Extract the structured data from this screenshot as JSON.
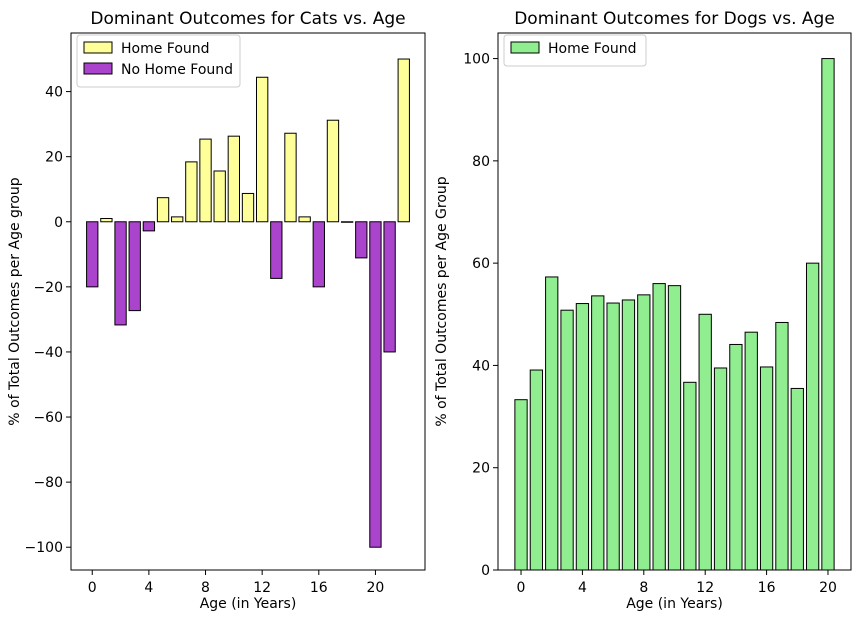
{
  "chart_data": [
    {
      "type": "bar",
      "title": "Dominant Outcomes for Cats vs. Age",
      "xlabel": "Age (in Years)",
      "ylabel": "% of Total Outcomes per Age group",
      "xlim": [
        -1.5,
        23.5
      ],
      "ylim": [
        -107,
        58
      ],
      "xticks": [
        0,
        4,
        8,
        12,
        16,
        20
      ],
      "yticks": [
        -100,
        -80,
        -60,
        -40,
        -20,
        0,
        20,
        40
      ],
      "legend_position": "top-left",
      "series": [
        {
          "name": "Home Found",
          "color": "#ffff99",
          "x": [
            1,
            5,
            6,
            7,
            8,
            9,
            10,
            11,
            12,
            14,
            15,
            17,
            18,
            22
          ],
          "values": [
            1,
            7.4,
            1.5,
            18.4,
            25.4,
            15.6,
            26.3,
            8.7,
            44.4,
            27.2,
            1.5,
            31.2,
            0,
            50
          ]
        },
        {
          "name": "No Home Found",
          "color": "#aa44cc",
          "x": [
            0,
            2,
            3,
            4,
            13,
            16,
            19,
            20,
            21
          ],
          "values": [
            -20,
            -31.7,
            -27.3,
            -2.8,
            -17.4,
            -20,
            -11.1,
            -100,
            -40
          ]
        }
      ]
    },
    {
      "type": "bar",
      "title": "Dominant Outcomes for Dogs vs. Age",
      "xlabel": "Age (in Years)",
      "ylabel": "% of Total Outcomes per Age Group",
      "xlim": [
        -1.5,
        21.5
      ],
      "ylim": [
        0,
        105
      ],
      "xticks": [
        0,
        4,
        8,
        12,
        16,
        20
      ],
      "yticks": [
        0,
        20,
        40,
        60,
        80,
        100
      ],
      "legend_position": "top-left",
      "series": [
        {
          "name": "Home Found",
          "color": "#90ee90",
          "x": [
            0,
            1,
            2,
            3,
            4,
            5,
            6,
            7,
            8,
            9,
            10,
            11,
            12,
            13,
            14,
            15,
            16,
            17,
            18,
            19,
            20
          ],
          "values": [
            33.3,
            39.1,
            57.3,
            50.8,
            52.1,
            53.6,
            52.2,
            52.8,
            53.8,
            56,
            55.6,
            36.7,
            50,
            39.5,
            44.1,
            46.5,
            39.7,
            48.4,
            35.5,
            60,
            100
          ]
        }
      ]
    }
  ]
}
